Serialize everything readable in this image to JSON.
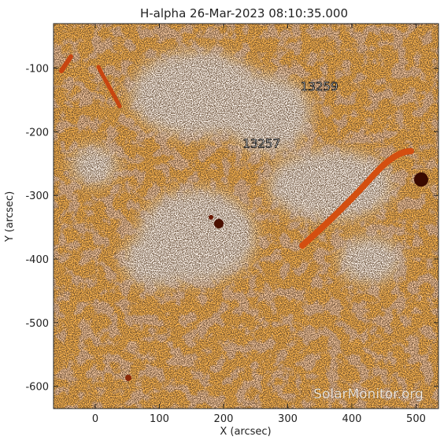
{
  "figure": {
    "title": "H-alpha 26-Mar-2023 08:10:35.000",
    "x_axis": {
      "label": "X (arcsec)",
      "range": [
        -65,
        535
      ],
      "ticks": [
        0,
        100,
        200,
        300,
        400,
        500
      ]
    },
    "y_axis": {
      "label": "Y (arcsec)",
      "range": [
        -635,
        -30
      ],
      "ticks": [
        -100,
        -200,
        -300,
        -400,
        -500,
        -600
      ]
    },
    "regions": [
      {
        "number": "13259",
        "x": 320,
        "y": -135
      },
      {
        "number": "13257",
        "x": 230,
        "y": -225
      }
    ],
    "watermark": "SolarMonitor.org",
    "colors": {
      "chromosphere": "#ff7a14",
      "plage": "#fff4ea",
      "background": "#f7c9a0",
      "sunspot": "#3a0a00"
    }
  }
}
